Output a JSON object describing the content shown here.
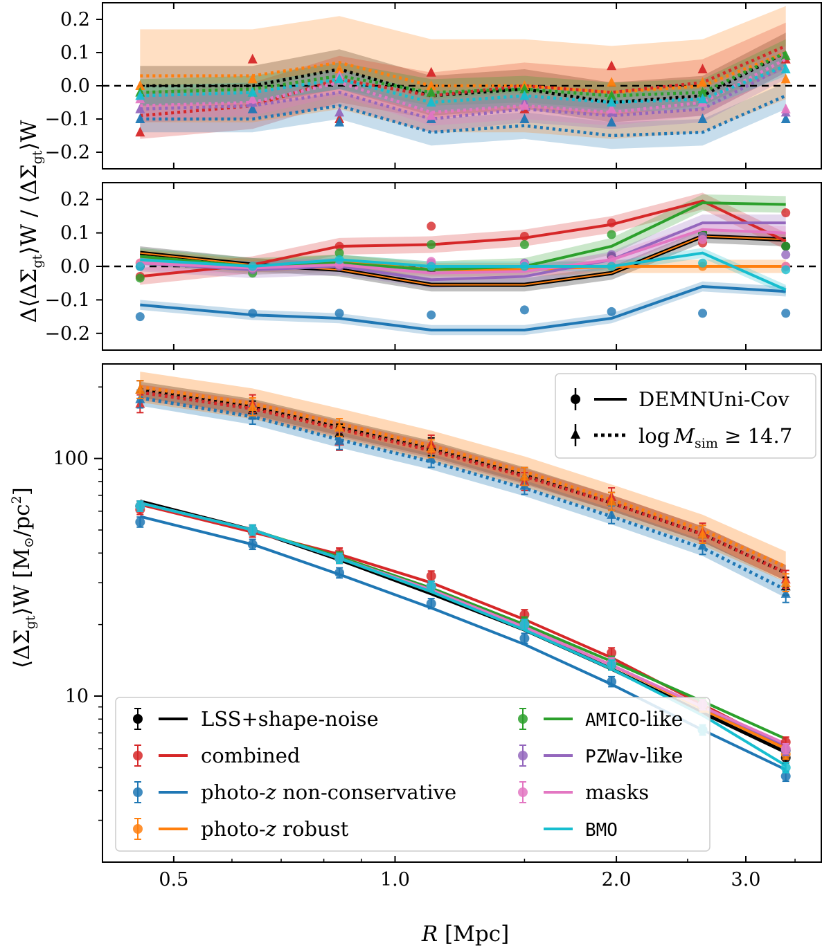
{
  "colors": {
    "LSS+shape-noise": "#000000",
    "combined": "#d62728",
    "photo-z non-conservative": "#1f77b4",
    "photo-z robust": "#ff7f0e",
    "AMICO-like": "#2ca02c",
    "PZWav-like": "#9467bd",
    "masks": "#e377c2",
    "BMO": "#17becf"
  },
  "chart_data": [
    {
      "panel": "top",
      "type": "line",
      "line_style": "dotted",
      "marker": "triangle",
      "ylabel": "/ ⟨ΔΣgt⟩W",
      "ylim": [
        -0.25,
        0.25
      ],
      "yticks": [
        "0.2",
        "0.1",
        "0.0",
        "−0.1",
        "−0.2"
      ],
      "ytick_values": [
        0.2,
        0.1,
        0.0,
        -0.1,
        -0.2
      ],
      "reference_line": 0.0,
      "x": [
        0.45,
        0.64,
        0.84,
        1.12,
        1.5,
        1.97,
        2.62,
        3.4
      ],
      "series": [
        {
          "name": "LSS+shape-noise",
          "line": [
            0.0,
            0.0,
            0.05,
            -0.03,
            -0.01,
            -0.05,
            -0.03,
            0.1
          ],
          "points": [
            0.0,
            0.0,
            0.05,
            -0.03,
            -0.01,
            -0.05,
            -0.03,
            0.1
          ],
          "band": 0.06
        },
        {
          "name": "combined",
          "line": [
            -0.09,
            -0.06,
            0.02,
            -0.03,
            0.0,
            -0.02,
            0.01,
            0.12
          ],
          "points": [
            -0.14,
            0.08,
            -0.1,
            0.04,
            -0.07,
            0.06,
            0.05,
            0.08
          ],
          "band": 0.07
        },
        {
          "name": "photo-z non-conservative",
          "line": [
            -0.1,
            -0.1,
            -0.06,
            -0.14,
            -0.12,
            -0.15,
            -0.14,
            -0.03
          ],
          "points": [
            -0.1,
            -0.07,
            -0.11,
            -0.1,
            -0.1,
            -0.11,
            -0.1,
            -0.1
          ],
          "band": 0.04
        },
        {
          "name": "photo-z robust",
          "line": [
            0.03,
            0.03,
            0.07,
            0.0,
            0.0,
            -0.02,
            0.0,
            0.1
          ],
          "points": [
            0.0,
            0.02,
            0.05,
            0.0,
            0.0,
            0.01,
            0.01,
            0.02
          ],
          "band": 0.14
        },
        {
          "name": "AMICO-like",
          "line": [
            -0.02,
            -0.01,
            0.03,
            -0.02,
            -0.01,
            -0.03,
            -0.02,
            0.1
          ],
          "points": [
            -0.02,
            -0.02,
            0.02,
            -0.02,
            -0.01,
            -0.03,
            -0.02,
            0.09
          ],
          "band": 0.04
        },
        {
          "name": "PZWav-like",
          "line": [
            -0.07,
            -0.06,
            -0.02,
            -0.1,
            -0.07,
            -0.09,
            -0.07,
            0.06
          ],
          "points": [
            -0.07,
            -0.05,
            -0.08,
            -0.09,
            -0.05,
            -0.08,
            -0.04,
            -0.08
          ],
          "band": 0.04
        },
        {
          "name": "masks",
          "line": [
            -0.06,
            -0.05,
            0.01,
            -0.08,
            -0.06,
            -0.08,
            -0.05,
            0.08
          ],
          "points": [
            -0.04,
            -0.04,
            0.03,
            -0.09,
            -0.06,
            -0.07,
            -0.05,
            -0.07
          ],
          "band": 0.04
        },
        {
          "name": "BMO",
          "line": [
            -0.03,
            -0.02,
            0.02,
            -0.05,
            -0.03,
            -0.05,
            -0.04,
            0.06
          ],
          "points": [
            -0.03,
            -0.02,
            0.02,
            -0.05,
            -0.03,
            -0.05,
            -0.04,
            0.05
          ],
          "band": 0.03
        }
      ]
    },
    {
      "panel": "middle",
      "type": "line",
      "line_style": "solid",
      "marker": "circle",
      "ylabel": "Δ⟨ΔΣgt⟩W",
      "ylim": [
        -0.25,
        0.25
      ],
      "yticks": [
        "0.2",
        "0.1",
        "0.0",
        "−0.1",
        "−0.2"
      ],
      "ytick_values": [
        0.2,
        0.1,
        0.0,
        -0.1,
        -0.2
      ],
      "reference_line": 0.0,
      "x": [
        0.45,
        0.64,
        0.84,
        1.12,
        1.5,
        1.97,
        2.62,
        3.4
      ],
      "series": [
        {
          "name": "LSS+shape-noise",
          "line": [
            0.04,
            0.005,
            -0.01,
            -0.055,
            -0.055,
            -0.02,
            0.09,
            0.08
          ],
          "points": [
            0.0,
            0.0,
            0.01,
            -0.01,
            0.0,
            0.03,
            0.1,
            0.06
          ],
          "band": 0.02
        },
        {
          "name": "combined",
          "line": [
            -0.03,
            0.005,
            0.06,
            0.065,
            0.085,
            0.125,
            0.195,
            0.075
          ],
          "points": [
            -0.03,
            0.0,
            0.06,
            0.12,
            0.09,
            0.13,
            0.07,
            0.16
          ],
          "band": 0.025
        },
        {
          "name": "photo-z non-conservative",
          "line": [
            -0.115,
            -0.145,
            -0.155,
            -0.19,
            -0.19,
            -0.155,
            -0.06,
            -0.075
          ],
          "points": [
            -0.15,
            -0.14,
            -0.14,
            -0.145,
            -0.13,
            -0.135,
            -0.14,
            -0.14
          ],
          "band": 0.015
        },
        {
          "name": "photo-z robust",
          "line": [
            0.03,
            0.0,
            0.015,
            -0.01,
            -0.01,
            0.0,
            0.0,
            0.0
          ],
          "points": [
            0.01,
            0.0,
            0.01,
            0.0,
            0.0,
            0.0,
            0.0,
            0.0
          ],
          "band": 0.02
        },
        {
          "name": "AMICO-like",
          "line": [
            0.03,
            0.0,
            0.01,
            -0.01,
            0.0,
            0.06,
            0.19,
            0.185
          ],
          "points": [
            -0.035,
            -0.02,
            0.04,
            0.065,
            0.065,
            0.095,
            0.1,
            0.06
          ],
          "band": 0.025
        },
        {
          "name": "PZWav-like",
          "line": [
            0.01,
            -0.01,
            0.0,
            -0.04,
            -0.03,
            0.02,
            0.13,
            0.13
          ],
          "points": [
            0.0,
            -0.01,
            0.0,
            0.01,
            0.01,
            0.035,
            0.09,
            0.035
          ],
          "band": 0.025
        },
        {
          "name": "masks",
          "line": [
            0.01,
            -0.005,
            0.005,
            -0.02,
            -0.015,
            0.02,
            0.11,
            0.1
          ],
          "points": [
            0.01,
            -0.005,
            0.005,
            0.015,
            0.005,
            0.02,
            0.08,
            0.0
          ],
          "band": 0.02
        },
        {
          "name": "BMO",
          "line": [
            0.02,
            0.0,
            0.02,
            0.0,
            0.0,
            0.0,
            0.04,
            -0.07
          ],
          "points": [
            0.0,
            0.0,
            0.02,
            0.0,
            0.0,
            0.0,
            0.01,
            -0.01
          ],
          "band": 0.015
        }
      ]
    },
    {
      "panel": "bottom",
      "type": "line",
      "yscale": "log",
      "xscale": "log",
      "ylabel": "⟨ΔΣgt⟩W [M⊙/pc²]",
      "xlabel": "R [Mpc]",
      "xlim": [
        0.4,
        3.8
      ],
      "ylim": [
        2.0,
        250
      ],
      "xticks": [
        "0.5",
        "1.0",
        "2.0",
        "3.0"
      ],
      "xtick_values": [
        0.5,
        1.0,
        2.0,
        3.0
      ],
      "yticks": [
        "10",
        "100"
      ],
      "ytick_values": [
        10,
        100
      ],
      "x": [
        0.45,
        0.64,
        0.84,
        1.12,
        1.5,
        1.97,
        2.62,
        3.4
      ],
      "series": [
        {
          "name": "LSS+shape-noise",
          "sample": "DEMNUni-Cov",
          "line": [
            66,
            50,
            37.5,
            27,
            19,
            13,
            8.5,
            5.8
          ],
          "points": [
            63,
            50,
            38,
            29,
            20,
            13.5,
            9,
            5.5
          ]
        },
        {
          "name": "combined",
          "sample": "DEMNUni-Cov",
          "line": [
            64,
            49,
            39.5,
            30,
            21,
            14.5,
            9.2,
            6.1
          ],
          "points": [
            61,
            49,
            40,
            32,
            22,
            15.2,
            9.3,
            6.4
          ]
        },
        {
          "name": "photo-z non-conservative",
          "sample": "DEMNUni-Cov",
          "line": [
            57,
            43.5,
            32.5,
            23.5,
            16.5,
            11.2,
            7.2,
            4.9
          ],
          "points": [
            54,
            43.5,
            33,
            24.5,
            17.5,
            11.5,
            7.2,
            4.6
          ]
        },
        {
          "name": "photo-z robust",
          "sample": "DEMNUni-Cov",
          "line": [
            65,
            50,
            38,
            27.5,
            19.5,
            13.5,
            8.8,
            6.0
          ],
          "points": [
            63,
            50,
            38,
            29,
            20,
            13.5,
            9,
            5.7
          ]
        },
        {
          "name": "AMICO-like",
          "sample": "DEMNUni-Cov",
          "line": [
            65,
            50,
            38.5,
            28.5,
            20,
            14,
            9.5,
            6.6
          ],
          "points": [
            63,
            50,
            38.5,
            29,
            20.5,
            14,
            9.3,
            5.9
          ]
        },
        {
          "name": "PZWav-like",
          "sample": "DEMNUni-Cov",
          "line": [
            65,
            50,
            38,
            28,
            19.5,
            13.5,
            9.0,
            6.2
          ],
          "points": [
            63,
            50,
            38,
            29,
            20,
            13.8,
            9.2,
            5.9
          ]
        },
        {
          "name": "masks",
          "sample": "DEMNUni-Cov",
          "line": [
            65,
            50,
            38,
            28,
            19.5,
            13.5,
            9.0,
            6.3
          ],
          "points": [
            63,
            50,
            38,
            29,
            20,
            13.8,
            9.2,
            6.0
          ]
        },
        {
          "name": "BMO",
          "sample": "DEMNUni-Cov",
          "line": [
            65,
            50,
            38,
            27.5,
            19,
            13,
            8.3,
            5.1
          ],
          "points": [
            63,
            50,
            38,
            29,
            20,
            13.5,
            7.2,
            5.0
          ]
        },
        {
          "name": "LSS+shape-noise",
          "sample": "log M_sim ≥ 14.7",
          "line": [
            195,
            165,
            135,
            110,
            85,
            65,
            48,
            33
          ],
          "points": [
            195,
            160,
            128,
            112,
            84,
            66,
            48,
            29
          ]
        },
        {
          "name": "combined",
          "sample": "log M_sim ≥ 14.7",
          "line": [
            190,
            162,
            133,
            108,
            84,
            65,
            48,
            33
          ],
          "points": [
            170,
            170,
            118,
            115,
            80,
            69,
            49,
            31
          ]
        },
        {
          "name": "photo-z non-conservative",
          "sample": "log M_sim ≥ 14.7",
          "line": [
            180,
            150,
            120,
            97,
            75,
            57,
            42,
            28
          ],
          "points": [
            178,
            152,
            119,
            100,
            77,
            58,
            43,
            27
          ]
        },
        {
          "name": "photo-z robust",
          "sample": "log M_sim ≥ 14.7",
          "line": [
            200,
            170,
            140,
            113,
            88,
            67,
            50,
            35
          ],
          "points": [
            195,
            165,
            135,
            110,
            84,
            66,
            48,
            30
          ]
        }
      ],
      "legend_samples": {
        "position": "top-right",
        "entries": [
          "DEMNUni-Cov",
          "log M_sim ≥ 14.7"
        ]
      },
      "legend_series": {
        "position": "bottom-left",
        "entries": [
          "LSS+shape-noise",
          "combined",
          "photo-z non-conservative",
          "photo-z robust",
          "AMICO-like",
          "PZWav-like",
          "masks",
          "BMO"
        ]
      }
    }
  ],
  "text": {
    "ylabel_top_left": "Δ⟨ΔΣ",
    "ylabel_top_sub": "gt",
    "ylabel_top_mid": "⟩W / ⟨ΔΣ",
    "ylabel_top_end": "⟩W",
    "ylabel_mid_a": "Δ⟨ΔΣ",
    "ylabel_mid_sub": "gt",
    "ylabel_mid_end": "⟩W",
    "ylabel_bot_a": "⟨ΔΣ",
    "ylabel_bot_sub": "gt",
    "ylabel_bot_b": "⟩W  [M",
    "ylabel_bot_sun": "⊙",
    "ylabel_bot_c": "/pc",
    "ylabel_bot_sup": "2",
    "ylabel_bot_d": "]",
    "xlabel_R": "R",
    "xlabel_unit": " [Mpc]",
    "legend_sample_1": "DEMNUni-Cov",
    "legend_sample_2_a": "log",
    "legend_sample_2_M": "M",
    "legend_sample_2_sub": "sim",
    "legend_sample_2_b": " ≥ 14.7",
    "leg_lss": "LSS+shape-noise",
    "leg_combined": "combined",
    "leg_nonc_a": "photo-",
    "leg_nonc_z": "z",
    "leg_nonc_b": " non-conservative",
    "leg_rob_a": "photo-",
    "leg_rob_z": "z",
    "leg_rob_b": " robust",
    "leg_amico": "AMICO",
    "leg_amico_b": "-like",
    "leg_pzwav": "PZWav",
    "leg_pzwav_b": "-like",
    "leg_masks": "masks",
    "leg_bmo": "BMO"
  }
}
